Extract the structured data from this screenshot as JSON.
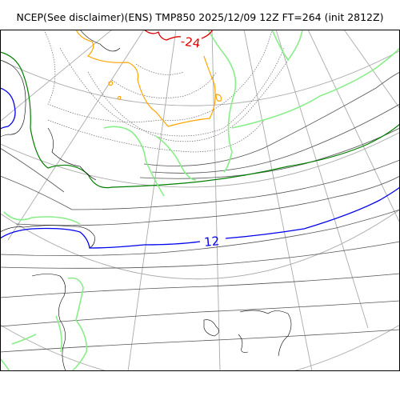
{
  "title": "NCEP(See disclaimer)(ENS) TMP850 2025/12/09 12Z FT=264 (init 2812Z)",
  "map_labels": {
    "neg24": "-24",
    "pos12": "12"
  },
  "colors": {
    "graticule": "#aaaaaa",
    "coast": "#000000",
    "isotherm_thin": "#555555",
    "isotherm_dotted": "#666666",
    "green_dark": "#008000",
    "green_light": "#88ee88",
    "orange": "#ffa500",
    "red": "#dd0000",
    "blue": "#0000ee"
  }
}
